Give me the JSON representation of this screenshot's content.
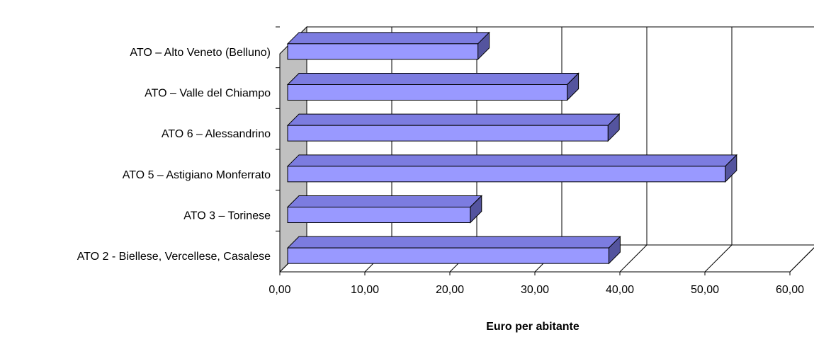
{
  "chart_data": {
    "type": "bar",
    "orientation": "horizontal",
    "three_d": true,
    "categories": [
      "ATO 2 - Biellese, Vercellese, Casalese",
      "ATO 3 – Torinese",
      "ATO 5 – Astigiano Monferrato",
      "ATO 6 – Alessandrino",
      "ATO    – Valle del Chiampo",
      "ATO    – Alto Veneto (Belluno)"
    ],
    "values": [
      38.7,
      22.4,
      52.4,
      38.6,
      33.8,
      23.3
    ],
    "xlabel": "Euro per abitante",
    "xlim": [
      0,
      60
    ],
    "xticks": [
      "0,00",
      "10,00",
      "20,00",
      "30,00",
      "40,00",
      "50,00",
      "60,00"
    ],
    "grid": true,
    "legend": false,
    "colors": {
      "bar_front": "#9999ff",
      "bar_top": "#7c7ce0",
      "bar_side": "#54549e",
      "wall": "#c0c0c0",
      "grid": "#000000"
    }
  }
}
